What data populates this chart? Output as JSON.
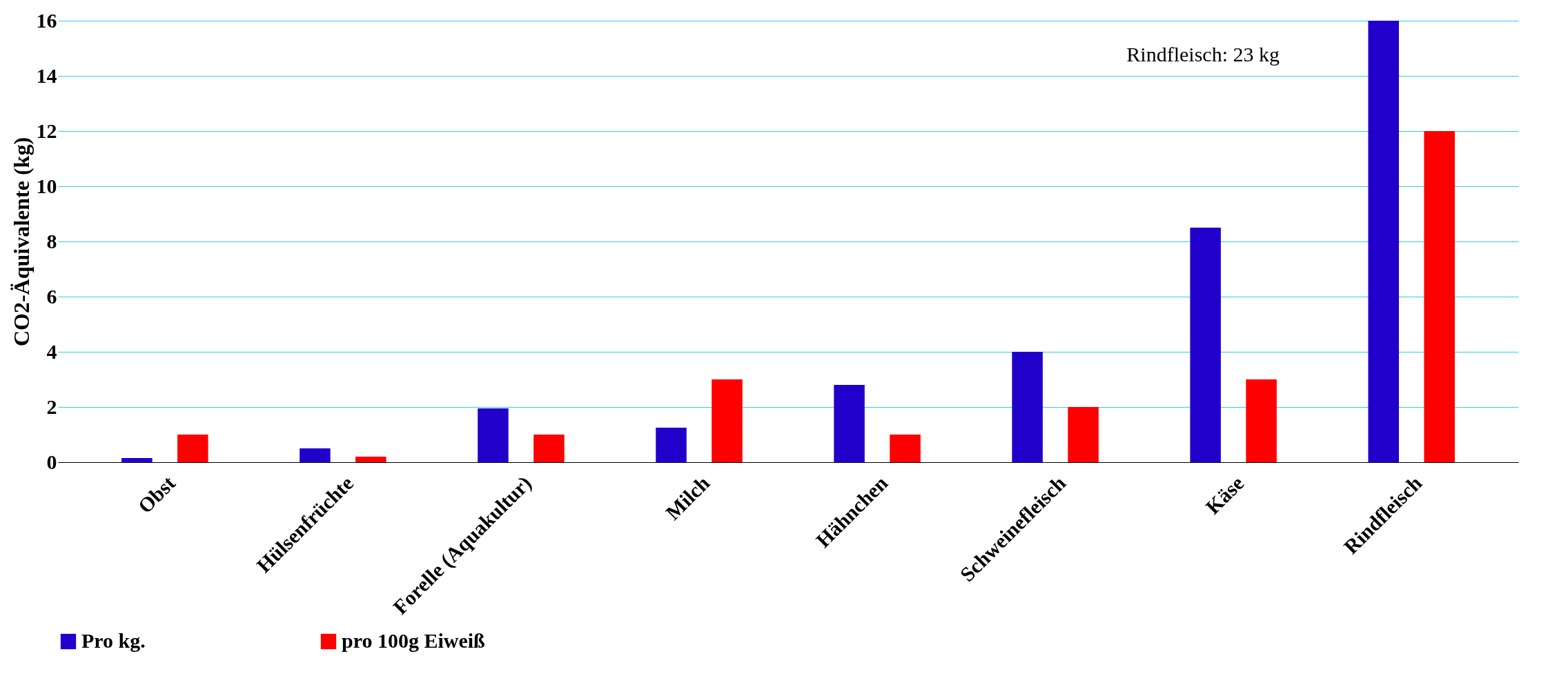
{
  "chart_data": {
    "type": "bar",
    "ylabel": "CO2-Äquivalente (kg)",
    "categories": [
      "Obst",
      "Hülsenfrüchte",
      "Forelle (Aquakultur)",
      "Milch",
      "Hähnchen",
      "Schweinefleisch",
      "Käse",
      "Rindfleisch"
    ],
    "series": [
      {
        "name": "Pro kg.",
        "color": "#2200cc",
        "values": [
          0.15,
          0.5,
          1.95,
          1.25,
          2.8,
          4.0,
          8.5,
          16
        ]
      },
      {
        "name": "pro 100g Eiweiß",
        "color": "#ff0000",
        "values": [
          1.0,
          0.2,
          1.0,
          3.0,
          1.0,
          2.0,
          3.0,
          12.0
        ]
      }
    ],
    "ylim": [
      0,
      16
    ],
    "yticks": [
      0,
      2,
      4,
      6,
      8,
      10,
      12,
      14,
      16
    ],
    "grid": "y",
    "legend": "bottom",
    "annotations": [
      "Rindfleisch: 23 kg"
    ]
  }
}
